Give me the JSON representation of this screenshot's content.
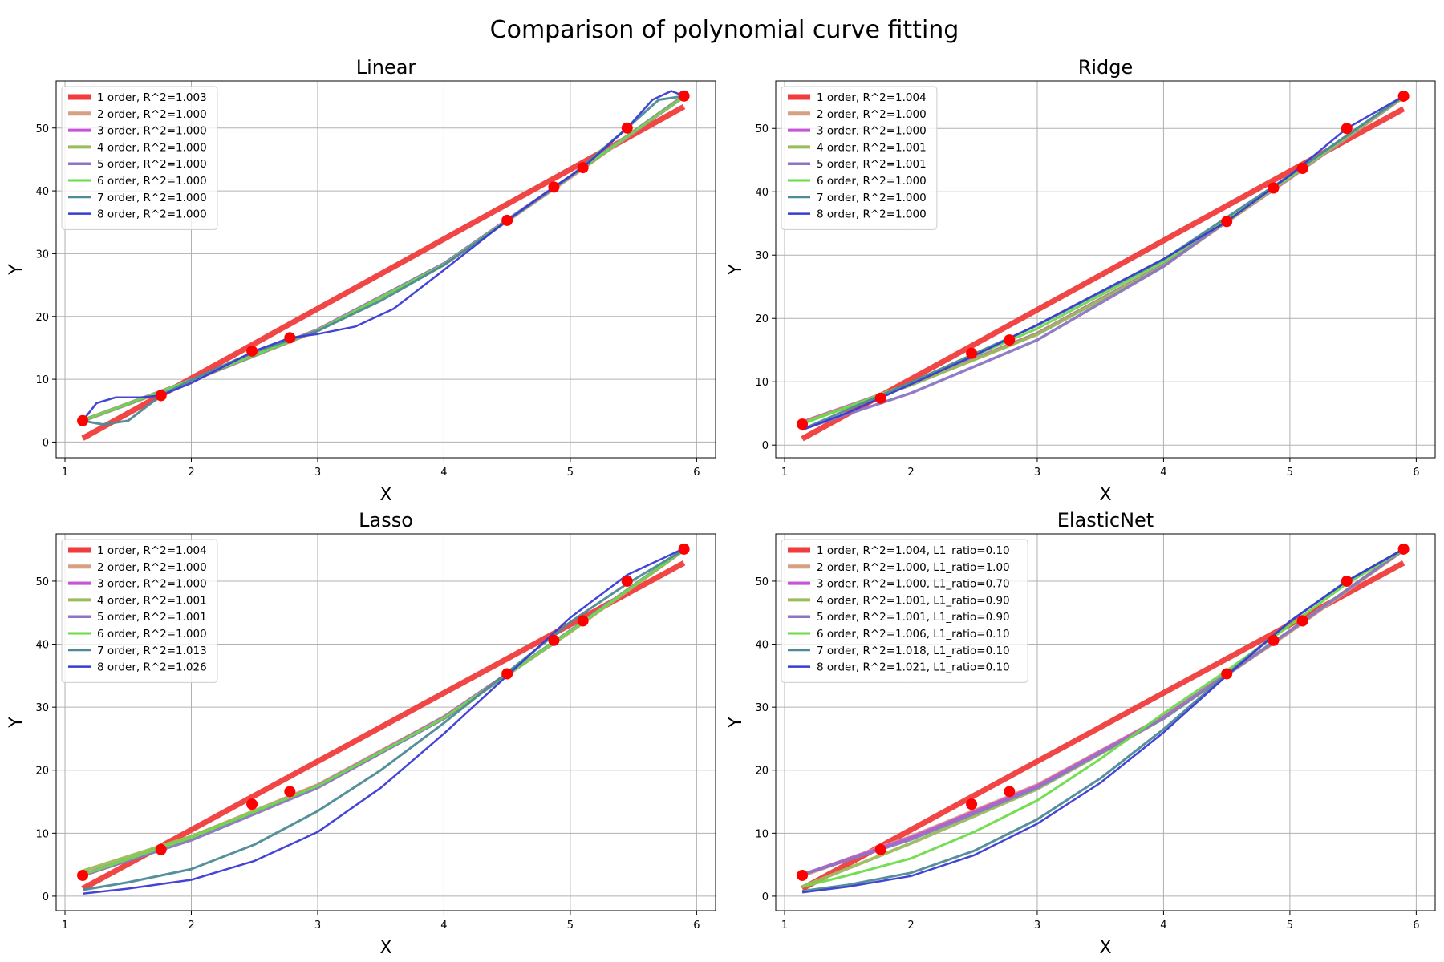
{
  "figure": {
    "title": "Comparison of polynomial curve fitting"
  },
  "chart_data": [
    {
      "type": "line",
      "title": "Linear",
      "xlabel": "X",
      "ylabel": "Y",
      "xlim": [
        0.93,
        6.15
      ],
      "ylim": [
        -2.5,
        57.5
      ],
      "xticks": [
        1,
        2,
        3,
        4,
        5,
        6
      ],
      "yticks": [
        0,
        10,
        20,
        30,
        40,
        50
      ],
      "grid": true,
      "legend_position": "upper left",
      "points": {
        "x": [
          1.14,
          1.76,
          2.48,
          2.78,
          4.5,
          4.87,
          5.1,
          5.45,
          5.9
        ],
        "y": [
          3.4,
          7.4,
          14.5,
          16.6,
          35.3,
          40.6,
          43.7,
          50.0,
          55.1
        ],
        "color": "#ff0000"
      },
      "series": [
        {
          "name": "1 order, R^2=1.003",
          "color": "#f03c3c",
          "width": 7,
          "x": [
            1.14,
            5.9
          ],
          "y": [
            0.6,
            53.4
          ]
        },
        {
          "name": "2 order, R^2=1.000",
          "color": "#d6a082",
          "width": 5,
          "x": [
            1.14,
            2.0,
            3.0,
            4.0,
            5.0,
            5.9
          ],
          "y": [
            3.4,
            9.8,
            17.8,
            28.3,
            42.2,
            55.1
          ]
        },
        {
          "name": "3 order, R^2=1.000",
          "color": "#c754d8",
          "width": 4,
          "x": [
            1.14,
            2.0,
            3.0,
            4.0,
            5.0,
            5.9
          ],
          "y": [
            3.4,
            9.9,
            17.9,
            28.4,
            42.3,
            55.0
          ]
        },
        {
          "name": "4 order, R^2=1.000",
          "color": "#9bbc5c",
          "width": 4,
          "x": [
            1.14,
            2.0,
            3.0,
            4.0,
            5.0,
            5.9
          ],
          "y": [
            3.4,
            9.8,
            17.8,
            28.3,
            42.3,
            55.1
          ]
        },
        {
          "name": "5 order, R^2=1.000",
          "color": "#8c75c2",
          "width": 3.5,
          "x": [
            1.14,
            2.0,
            3.0,
            4.0,
            5.0,
            5.9
          ],
          "y": [
            3.4,
            9.8,
            17.8,
            28.4,
            42.3,
            55.1
          ]
        },
        {
          "name": "6 order, R^2=1.000",
          "color": "#6bdb4a",
          "width": 3,
          "x": [
            1.14,
            2.0,
            3.0,
            4.0,
            5.0,
            5.9
          ],
          "y": [
            3.4,
            9.9,
            17.8,
            28.3,
            42.3,
            55.0
          ]
        },
        {
          "name": "7 order, R^2=1.000",
          "color": "#4d8a96",
          "width": 3,
          "x": [
            1.14,
            1.3,
            1.5,
            1.76,
            2.0,
            2.5,
            3.0,
            3.5,
            4.0,
            4.5,
            5.0,
            5.45,
            5.7,
            5.9
          ],
          "y": [
            3.4,
            2.8,
            3.4,
            7.4,
            9.9,
            14.4,
            17.7,
            22.5,
            28.2,
            35.2,
            42.3,
            50.0,
            54.5,
            55.1
          ]
        },
        {
          "name": "8 order, R^2=1.000",
          "color": "#3a3ad4",
          "width": 2.5,
          "x": [
            1.14,
            1.25,
            1.4,
            1.6,
            1.76,
            2.0,
            2.5,
            2.78,
            3.0,
            3.3,
            3.6,
            4.0,
            4.5,
            4.87,
            5.1,
            5.45,
            5.65,
            5.8,
            5.9
          ],
          "y": [
            3.4,
            6.2,
            7.1,
            7.1,
            7.4,
            9.4,
            14.5,
            16.6,
            17.2,
            18.4,
            21.2,
            27.4,
            35.3,
            40.6,
            43.7,
            50.0,
            54.5,
            55.9,
            55.1
          ]
        }
      ]
    },
    {
      "type": "line",
      "title": "Ridge",
      "xlabel": "X",
      "ylabel": "Y",
      "xlim": [
        0.93,
        6.15
      ],
      "ylim": [
        -2.0,
        57.5
      ],
      "xticks": [
        1,
        2,
        3,
        4,
        5,
        6
      ],
      "yticks": [
        0,
        10,
        20,
        30,
        40,
        50
      ],
      "grid": true,
      "legend_position": "upper left",
      "points": {
        "x": [
          1.14,
          1.76,
          2.48,
          2.78,
          4.5,
          4.87,
          5.1,
          5.45,
          5.9
        ],
        "y": [
          3.3,
          7.4,
          14.5,
          16.6,
          35.3,
          40.6,
          43.7,
          50.0,
          55.1
        ],
        "color": "#ff0000"
      },
      "series": [
        {
          "name": "1 order, R^2=1.004",
          "color": "#f03c3c",
          "width": 7,
          "x": [
            1.14,
            5.9
          ],
          "y": [
            1.0,
            53.1
          ]
        },
        {
          "name": "2 order, R^2=1.000",
          "color": "#d6a082",
          "width": 5,
          "x": [
            1.14,
            2.0,
            3.0,
            4.0,
            5.0,
            5.9
          ],
          "y": [
            3.6,
            9.6,
            17.6,
            28.4,
            42.2,
            55.0
          ]
        },
        {
          "name": "3 order, R^2=1.000",
          "color": "#c754d8",
          "width": 4,
          "x": [
            1.14,
            2.0,
            3.0,
            4.0,
            5.0,
            5.9
          ],
          "y": [
            3.6,
            9.6,
            17.6,
            28.4,
            42.2,
            55.0
          ]
        },
        {
          "name": "4 order, R^2=1.001",
          "color": "#9bbc5c",
          "width": 4,
          "x": [
            1.14,
            2.0,
            3.0,
            4.0,
            5.0,
            5.9
          ],
          "y": [
            3.5,
            9.5,
            17.5,
            28.3,
            42.3,
            55.0
          ]
        },
        {
          "name": "5 order, R^2=1.001",
          "color": "#8c75c2",
          "width": 3.5,
          "x": [
            1.14,
            2.0,
            3.0,
            4.0,
            5.0,
            5.9
          ],
          "y": [
            2.5,
            8.2,
            16.6,
            28.2,
            42.6,
            55.1
          ]
        },
        {
          "name": "6 order, R^2=1.000",
          "color": "#6bdb4a",
          "width": 3,
          "x": [
            1.14,
            2.0,
            3.0,
            4.0,
            5.0,
            5.9
          ],
          "y": [
            3.3,
            9.8,
            18.4,
            28.9,
            42.4,
            55.1
          ]
        },
        {
          "name": "7 order, R^2=1.000",
          "color": "#4d8a96",
          "width": 3,
          "x": [
            1.14,
            2.0,
            3.0,
            4.0,
            5.0,
            5.9
          ],
          "y": [
            2.5,
            9.9,
            18.9,
            29.3,
            42.6,
            55.1
          ]
        },
        {
          "name": "8 order, R^2=1.000",
          "color": "#3a3ad4",
          "width": 2.5,
          "x": [
            1.14,
            1.5,
            2.0,
            2.5,
            3.0,
            3.5,
            4.0,
            4.5,
            5.0,
            5.45,
            5.9
          ],
          "y": [
            2.4,
            5.1,
            9.6,
            14.1,
            19.0,
            24.2,
            29.4,
            35.3,
            42.6,
            50.0,
            55.1
          ]
        }
      ]
    },
    {
      "type": "line",
      "title": "Lasso",
      "xlabel": "X",
      "ylabel": "Y",
      "xlim": [
        0.93,
        6.15
      ],
      "ylim": [
        -2.3,
        57.5
      ],
      "xticks": [
        1,
        2,
        3,
        4,
        5,
        6
      ],
      "yticks": [
        0,
        10,
        20,
        30,
        40,
        50
      ],
      "grid": true,
      "legend_position": "upper left",
      "points": {
        "x": [
          1.14,
          1.76,
          2.48,
          2.78,
          4.5,
          4.87,
          5.1,
          5.45,
          5.9
        ],
        "y": [
          3.3,
          7.4,
          14.6,
          16.6,
          35.3,
          40.6,
          43.7,
          50.0,
          55.1
        ],
        "color": "#ff0000"
      },
      "series": [
        {
          "name": "1 order, R^2=1.004",
          "color": "#f03c3c",
          "width": 7,
          "x": [
            1.14,
            5.9
          ],
          "y": [
            1.2,
            52.9
          ]
        },
        {
          "name": "2 order, R^2=1.000",
          "color": "#d6a082",
          "width": 5,
          "x": [
            1.14,
            2.0,
            3.0,
            4.0,
            5.0,
            5.9
          ],
          "y": [
            3.3,
            9.4,
            17.6,
            28.4,
            42.0,
            55.0
          ]
        },
        {
          "name": "3 order, R^2=1.000",
          "color": "#c754d8",
          "width": 4,
          "x": [
            1.14,
            2.0,
            3.0,
            4.0,
            5.0,
            5.9
          ],
          "y": [
            3.4,
            9.3,
            17.5,
            28.4,
            42.1,
            55.0
          ]
        },
        {
          "name": "4 order, R^2=1.001",
          "color": "#9bbc5c",
          "width": 4,
          "x": [
            1.14,
            2.0,
            3.0,
            4.0,
            5.0,
            5.9
          ],
          "y": [
            4.0,
            9.5,
            17.4,
            28.2,
            42.0,
            55.0
          ]
        },
        {
          "name": "5 order, R^2=1.001",
          "color": "#8c75c2",
          "width": 3.5,
          "x": [
            1.14,
            2.0,
            3.0,
            4.0,
            5.0,
            5.9
          ],
          "y": [
            3.3,
            8.9,
            17.2,
            28.2,
            42.2,
            55.0
          ]
        },
        {
          "name": "6 order, R^2=1.000",
          "color": "#6bdb4a",
          "width": 3,
          "x": [
            1.14,
            2.0,
            3.0,
            4.0,
            5.0,
            5.9
          ],
          "y": [
            3.4,
            9.3,
            17.5,
            28.3,
            42.1,
            55.0
          ]
        },
        {
          "name": "7 order, R^2=1.013",
          "color": "#4d8a96",
          "width": 3,
          "x": [
            1.14,
            1.5,
            2.0,
            2.5,
            3.0,
            3.5,
            4.0,
            4.5,
            5.0,
            5.45,
            5.9
          ],
          "y": [
            1.0,
            2.2,
            4.3,
            8.2,
            13.5,
            20.0,
            27.5,
            35.5,
            43.5,
            49.6,
            55.0
          ]
        },
        {
          "name": "8 order, R^2=1.026",
          "color": "#3a3ad4",
          "width": 2.5,
          "x": [
            1.14,
            1.5,
            2.0,
            2.5,
            3.0,
            3.5,
            4.0,
            4.5,
            5.0,
            5.45,
            5.9
          ],
          "y": [
            0.4,
            1.2,
            2.6,
            5.6,
            10.2,
            17.2,
            25.8,
            35.0,
            44.2,
            51.0,
            55.2
          ]
        }
      ]
    },
    {
      "type": "line",
      "title": "ElasticNet",
      "xlabel": "X",
      "ylabel": "Y",
      "xlim": [
        0.93,
        6.15
      ],
      "ylim": [
        -2.3,
        57.5
      ],
      "xticks": [
        1,
        2,
        3,
        4,
        5,
        6
      ],
      "yticks": [
        0,
        10,
        20,
        30,
        40,
        50
      ],
      "grid": true,
      "legend_position": "upper left",
      "points": {
        "x": [
          1.14,
          1.76,
          2.48,
          2.78,
          4.5,
          4.87,
          5.1,
          5.45,
          5.9
        ],
        "y": [
          3.3,
          7.4,
          14.6,
          16.6,
          35.3,
          40.6,
          43.7,
          50.0,
          55.1
        ],
        "color": "#ff0000"
      },
      "series": [
        {
          "name": "1 order, R^2=1.004, L1_ratio=0.10",
          "color": "#f03c3c",
          "width": 7,
          "x": [
            1.14,
            5.9
          ],
          "y": [
            1.2,
            52.9
          ]
        },
        {
          "name": "2 order, R^2=1.000, L1_ratio=1.00",
          "color": "#d6a082",
          "width": 5,
          "x": [
            1.14,
            2.0,
            3.0,
            4.0,
            5.0,
            5.9
          ],
          "y": [
            3.3,
            9.4,
            17.6,
            28.4,
            42.0,
            55.0
          ]
        },
        {
          "name": "3 order, R^2=1.000, L1_ratio=0.70",
          "color": "#c754d8",
          "width": 4,
          "x": [
            1.14,
            2.0,
            3.0,
            4.0,
            5.0,
            5.9
          ],
          "y": [
            3.4,
            9.3,
            17.5,
            28.4,
            42.1,
            55.0
          ]
        },
        {
          "name": "4 order, R^2=1.001, L1_ratio=0.90",
          "color": "#9bbc5c",
          "width": 4,
          "x": [
            1.14,
            2.0,
            3.0,
            4.0,
            5.0,
            5.9
          ],
          "y": [
            1.5,
            8.4,
            17.0,
            28.2,
            42.1,
            55.0
          ]
        },
        {
          "name": "5 order, R^2=1.001, L1_ratio=0.90",
          "color": "#8c75c2",
          "width": 3.5,
          "x": [
            1.14,
            2.0,
            3.0,
            4.0,
            5.0,
            5.9
          ],
          "y": [
            3.4,
            9.0,
            17.2,
            28.2,
            42.1,
            55.0
          ]
        },
        {
          "name": "6 order, R^2=1.006, L1_ratio=0.10",
          "color": "#6bdb4a",
          "width": 3,
          "x": [
            1.14,
            1.5,
            2.0,
            2.5,
            3.0,
            3.5,
            4.0,
            4.5,
            5.0,
            5.45,
            5.9
          ],
          "y": [
            1.5,
            3.3,
            6.0,
            10.2,
            15.2,
            21.8,
            29.0,
            35.8,
            43.0,
            49.6,
            55.0
          ]
        },
        {
          "name": "7 order, R^2=1.018, L1_ratio=0.10",
          "color": "#4d8a96",
          "width": 3,
          "x": [
            1.14,
            1.5,
            2.0,
            2.5,
            3.0,
            3.5,
            4.0,
            4.5,
            5.0,
            5.45,
            5.9
          ],
          "y": [
            0.8,
            1.8,
            3.7,
            7.2,
            12.2,
            18.7,
            26.5,
            35.2,
            43.6,
            50.0,
            55.1
          ]
        },
        {
          "name": "8 order, R^2=1.021, L1_ratio=0.10",
          "color": "#3a3ad4",
          "width": 2.5,
          "x": [
            1.14,
            1.5,
            2.0,
            2.5,
            3.0,
            3.5,
            4.0,
            4.5,
            5.0,
            5.45,
            5.9
          ],
          "y": [
            0.6,
            1.5,
            3.2,
            6.5,
            11.5,
            18.0,
            26.0,
            35.0,
            43.6,
            50.0,
            55.1
          ]
        }
      ]
    }
  ]
}
